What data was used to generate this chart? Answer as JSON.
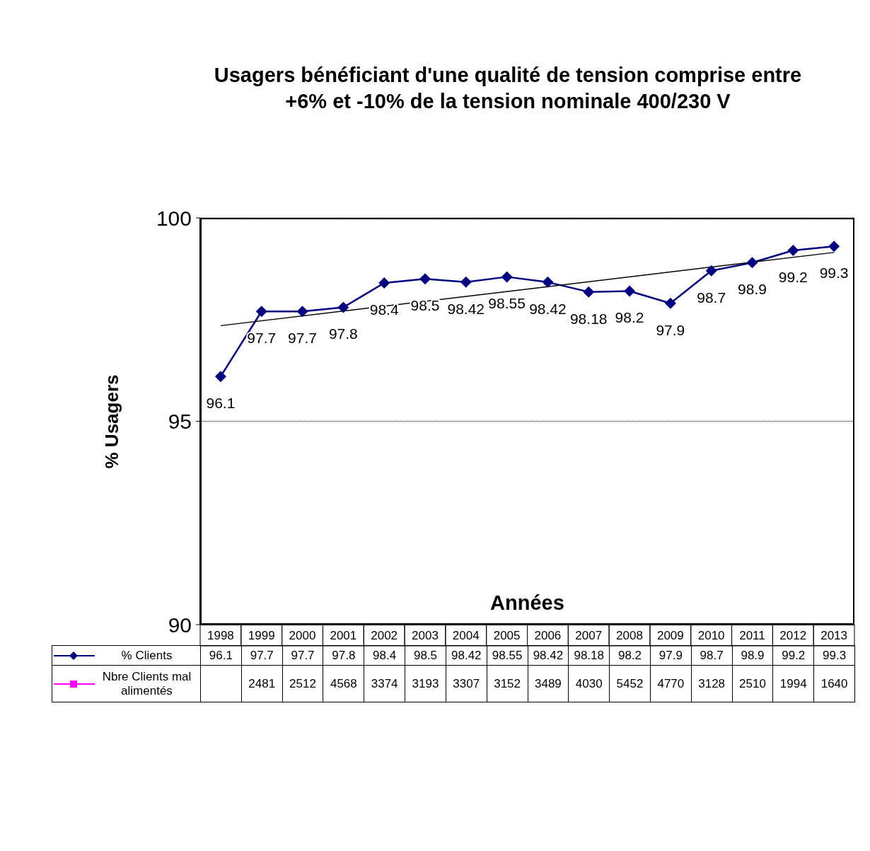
{
  "chart_data": {
    "type": "line",
    "title": "Usagers bénéficiant d'une qualité de tension comprise entre +6% et -10% de la tension nominale 400/230 V",
    "xlabel": "Années",
    "ylabel": "% Usagers",
    "categories": [
      "1998",
      "1999",
      "2000",
      "2001",
      "2002",
      "2003",
      "2004",
      "2005",
      "2006",
      "2007",
      "2008",
      "2009",
      "2010",
      "2011",
      "2012",
      "2013"
    ],
    "series": [
      {
        "name": "% Clients",
        "color": "#000080",
        "values": [
          96.1,
          97.7,
          97.7,
          97.8,
          98.4,
          98.5,
          98.42,
          98.55,
          98.42,
          98.18,
          98.2,
          97.9,
          98.7,
          98.9,
          99.2,
          99.3
        ],
        "value_labels": [
          "96.1",
          "97.7",
          "97.7",
          "97.8",
          "98.4",
          "98.5",
          "98.42",
          "98.55",
          "98.42",
          "98.18",
          "98.2",
          "97.9",
          "98.7",
          "98.9",
          "99.2",
          "99.3"
        ]
      },
      {
        "name": "Nbre Clients mal alimentés",
        "color": "#ff00ff",
        "marker": "square",
        "values": [
          null,
          null,
          null,
          null,
          null,
          null,
          null,
          null,
          null,
          null,
          null,
          null,
          null,
          null,
          null,
          null
        ],
        "value_labels": [
          null,
          "2481",
          "2512",
          "4568",
          "3374",
          "3193",
          "3307",
          "3152",
          "3489",
          "4030",
          "5452",
          "4770",
          "3128",
          "2510",
          "1994",
          "1640"
        ]
      },
      {
        "type": "line",
        "color": "#000000",
        "marker": "none",
        "values": [
          97.35,
          null,
          null,
          null,
          null,
          null,
          null,
          null,
          null,
          null,
          null,
          null,
          null,
          null,
          null,
          99.15
        ]
      }
    ],
    "ylim": [
      90,
      100
    ],
    "yticks": [
      90,
      95,
      100
    ],
    "grid": "y",
    "legend": "bottom",
    "marker": "diamond",
    "line_style": "solid"
  }
}
